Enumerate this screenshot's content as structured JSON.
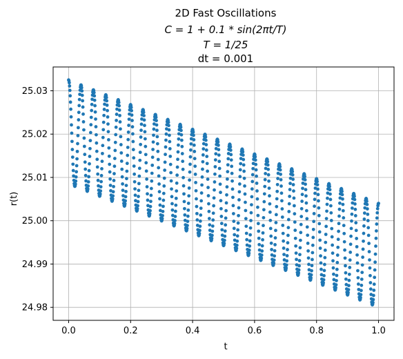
{
  "chart_data": {
    "type": "scatter",
    "title_lines": [
      "2D Fast Oscillations",
      "C = 1 + 0.1 * sin(2πt/T)",
      "T = 1/25",
      "dt = 0.001"
    ],
    "xlabel": "t",
    "ylabel": "r(t)",
    "xlim": [
      -0.05,
      1.05
    ],
    "ylim": [
      24.977,
      25.0355
    ],
    "xticks": [
      0.0,
      0.2,
      0.4,
      0.6,
      0.8,
      1.0
    ],
    "xtick_labels": [
      "0.0",
      "0.2",
      "0.4",
      "0.6",
      "0.8",
      "1.0"
    ],
    "yticks": [
      24.98,
      24.99,
      25.0,
      25.01,
      25.02,
      25.03
    ],
    "ytick_labels": [
      "24.98",
      "24.99",
      "25.00",
      "25.01",
      "25.02",
      "25.03"
    ],
    "grid": true,
    "marker_color": "#1f77b4",
    "series": [
      {
        "period": 0.04,
        "t_start": 0.0,
        "t_end": 1.0,
        "dt": 0.001,
        "r_max_at_start": 25.0325,
        "r_max_at_end": 25.004,
        "r_min_at_start": 25.0085,
        "r_min_at_end": 24.98
      }
    ]
  }
}
